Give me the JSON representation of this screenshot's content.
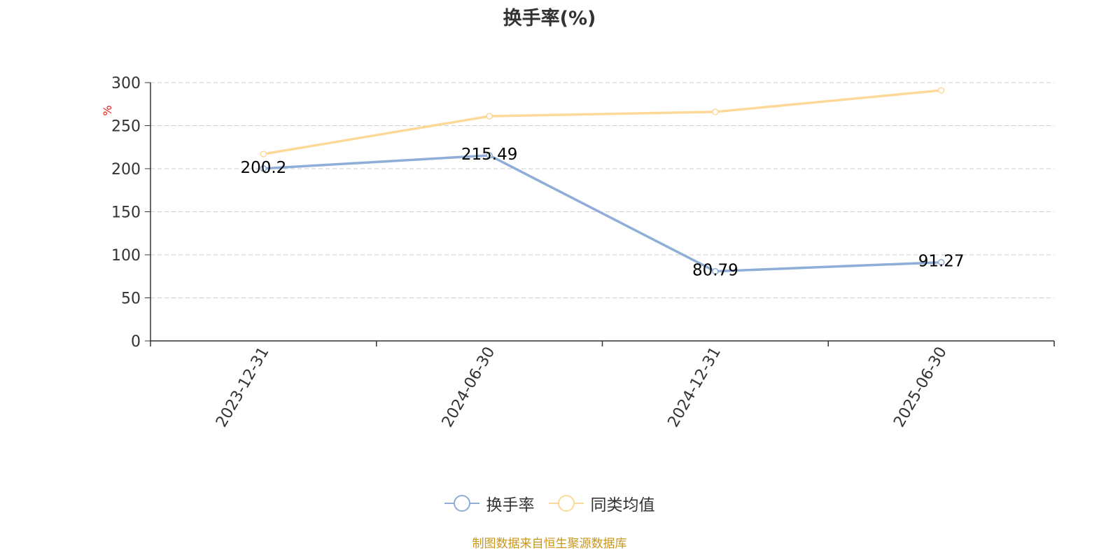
{
  "chart_data": {
    "type": "line",
    "title": "换手率(%)",
    "ylabel": "%",
    "x": [
      "2023-12-31",
      "2024-06-30",
      "2024-12-31",
      "2025-06-30"
    ],
    "ylim": [
      0,
      300
    ],
    "yticks": [
      0,
      50,
      100,
      150,
      200,
      250,
      300
    ],
    "grid": true,
    "legend_position": "bottom",
    "series": [
      {
        "name": "换手率",
        "color": "#8eaed8",
        "values": [
          200.2,
          215.49,
          80.79,
          91.27
        ],
        "data_labels": [
          "200.2",
          "215.49",
          "80.79",
          "91.27"
        ]
      },
      {
        "name": "同类均值",
        "color": "#fdd999",
        "values": [
          217,
          261,
          266,
          291
        ]
      }
    ]
  },
  "footer": {
    "source": "制图数据来自恒生聚源数据库"
  },
  "colors": {
    "ylabel": "#e0201c",
    "axis": "#333333",
    "grid": "#cccccc"
  }
}
